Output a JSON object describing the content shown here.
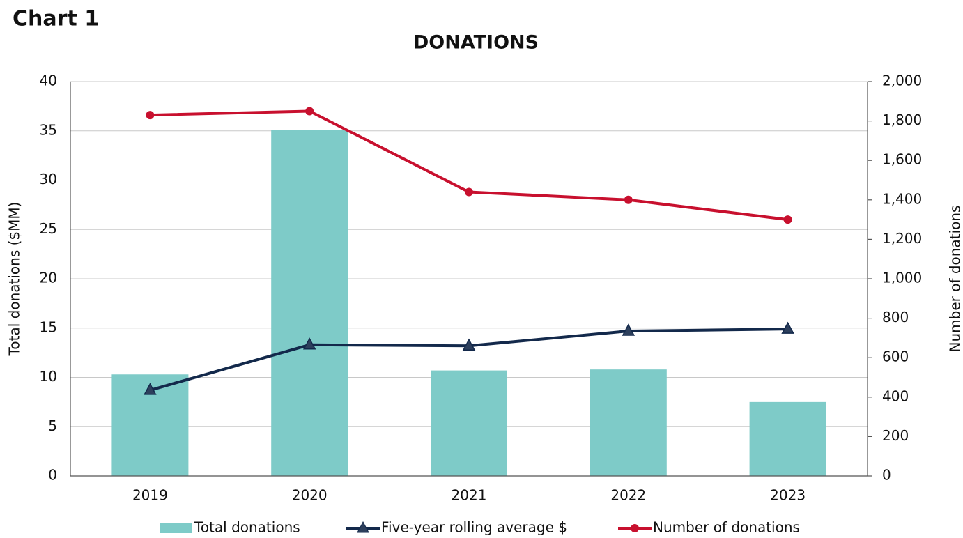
{
  "chart_data": {
    "type": "bar-line",
    "heading": "Chart 1",
    "title": "DONATIONS",
    "ylabel": "Total donations ($MM)",
    "y2label": "Number of donations",
    "categories": [
      "2019",
      "2020",
      "2021",
      "2022",
      "2023"
    ],
    "series": [
      {
        "name": "Total donations",
        "type": "bar",
        "color": "#7ecbc8",
        "values": [
          10.3,
          35.1,
          10.7,
          10.8,
          7.5
        ]
      },
      {
        "name": "Five-year rolling average  $",
        "type": "line",
        "marker": "triangle",
        "color": "#13294b",
        "values": [
          8.7,
          13.3,
          13.2,
          14.7,
          14.9
        ]
      },
      {
        "name": "Number of donations",
        "type": "line",
        "marker": "circle",
        "color": "#c8102e",
        "axis": "y2",
        "values": [
          1830,
          1850,
          1440,
          1400,
          1300
        ]
      }
    ],
    "ylim": [
      0,
      40
    ],
    "yticks": [
      0,
      5,
      10,
      15,
      20,
      25,
      30,
      35,
      40
    ],
    "y2lim": [
      0,
      2000
    ],
    "y2ticks": [
      0,
      200,
      400,
      600,
      800,
      {
        "value": 1000,
        "label": "1,000"
      },
      {
        "value": 1200,
        "label": "1,200"
      },
      {
        "value": 1400,
        "label": "1,400"
      },
      {
        "value": 1600,
        "label": "1,600"
      },
      {
        "value": 1800,
        "label": "1,800"
      },
      {
        "value": 2000,
        "label": "2,000"
      }
    ],
    "grid": true,
    "legend": "bottom"
  }
}
